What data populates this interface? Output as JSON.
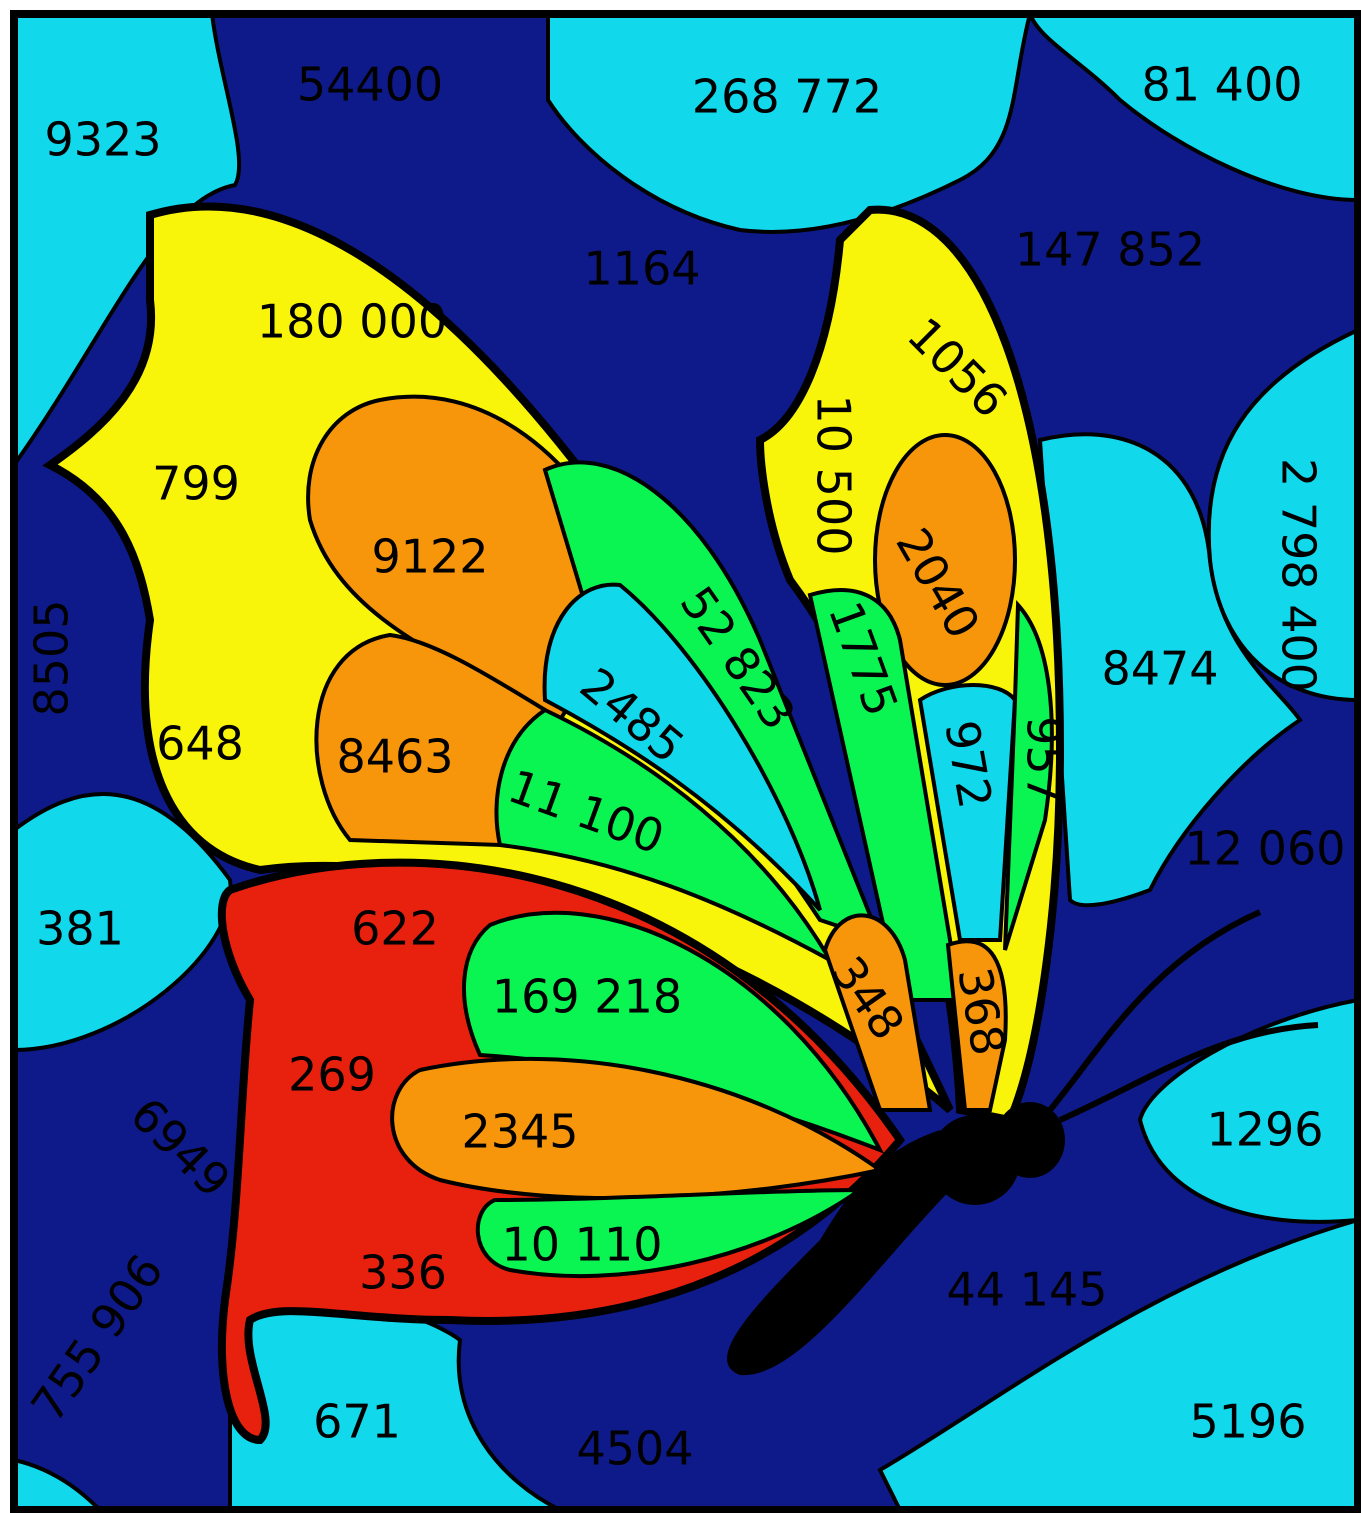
{
  "regions": [
    {
      "label": "9323"
    },
    {
      "label": "54400"
    },
    {
      "label": "268 772"
    },
    {
      "label": "81 400"
    },
    {
      "label": "1164"
    },
    {
      "label": "147 852"
    },
    {
      "label": "180 000"
    },
    {
      "label": "1056"
    },
    {
      "label": "10 500"
    },
    {
      "label": "799"
    },
    {
      "label": "9122"
    },
    {
      "label": "2040"
    },
    {
      "label": "52 823"
    },
    {
      "label": "1775"
    },
    {
      "label": "2 798 400"
    },
    {
      "label": "8505"
    },
    {
      "label": "8474"
    },
    {
      "label": "2485"
    },
    {
      "label": "972"
    },
    {
      "label": "957"
    },
    {
      "label": "648"
    },
    {
      "label": "8463"
    },
    {
      "label": "11 100"
    },
    {
      "label": "12 060"
    },
    {
      "label": "381"
    },
    {
      "label": "622"
    },
    {
      "label": "169 218"
    },
    {
      "label": "348"
    },
    {
      "label": "368"
    },
    {
      "label": "269"
    },
    {
      "label": "6949"
    },
    {
      "label": "2345"
    },
    {
      "label": "1296"
    },
    {
      "label": "10 110"
    },
    {
      "label": "336"
    },
    {
      "label": "44 145"
    },
    {
      "label": "755 906"
    },
    {
      "label": "671"
    },
    {
      "label": "4504"
    },
    {
      "label": "5196"
    }
  ]
}
